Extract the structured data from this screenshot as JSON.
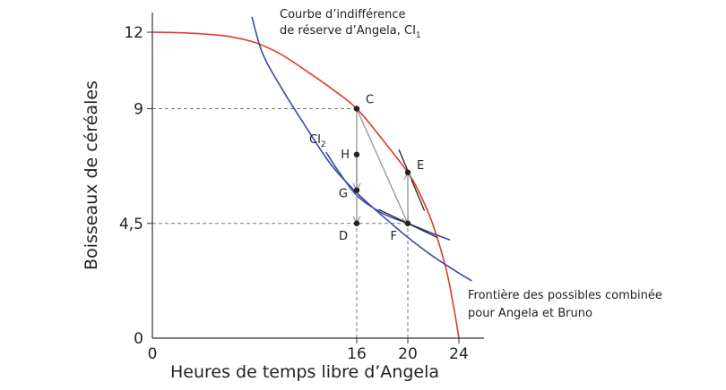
{
  "chart_data": {
    "type": "line",
    "xlabel": "Heures de temps libre d’Angela",
    "ylabel": "Boisseaux de céréales",
    "xlim": [
      0,
      24
    ],
    "ylim": [
      0,
      12
    ],
    "x_ticks": [
      {
        "value": 0,
        "label": "0"
      },
      {
        "value": 16,
        "label": "16"
      },
      {
        "value": 20,
        "label": "20"
      },
      {
        "value": 24,
        "label": "24"
      }
    ],
    "y_ticks": [
      {
        "value": 0,
        "label": "0"
      },
      {
        "value": 4.5,
        "label": "4,5"
      },
      {
        "value": 9,
        "label": "9"
      },
      {
        "value": 12,
        "label": "12"
      }
    ],
    "colors": {
      "frontier": "#e03a2a",
      "indifference": "#3a4aa8",
      "tangent": "#222222",
      "arrow": "#9a9a9a",
      "guide": "#777777",
      "axis": "#333333"
    },
    "series": [
      {
        "name": "Frontière des possibles combinée pour Angela et Bruno",
        "kind": "frontier",
        "points": [
          [
            0,
            12
          ],
          [
            2,
            11.98
          ],
          [
            4,
            11.93
          ],
          [
            6,
            11.83
          ],
          [
            8,
            11.6
          ],
          [
            10,
            11.15
          ],
          [
            12,
            10.5
          ],
          [
            14,
            9.8
          ],
          [
            16,
            9
          ],
          [
            18,
            7.8
          ],
          [
            20,
            6.5
          ],
          [
            21,
            5.6
          ],
          [
            22,
            4.4
          ],
          [
            23,
            2.7
          ],
          [
            23.6,
            1.2
          ],
          [
            24,
            0
          ]
        ]
      },
      {
        "name": "CI1",
        "kind": "indifference",
        "points": [
          [
            7.8,
            12.6
          ],
          [
            8.6,
            11.2
          ],
          [
            10,
            9.9
          ],
          [
            12,
            8.3
          ],
          [
            14,
            6.8
          ],
          [
            16,
            5.7
          ],
          [
            18,
            4.8
          ],
          [
            20,
            3.95
          ],
          [
            22,
            3.2
          ],
          [
            24,
            2.55
          ],
          [
            25,
            2.25
          ]
        ]
      },
      {
        "name": "CI2",
        "kind": "indifference",
        "points": [
          [
            13.6,
            7.3
          ],
          [
            14.5,
            6.6
          ],
          [
            16,
            5.6
          ],
          [
            18,
            4.9
          ],
          [
            20,
            4.5
          ],
          [
            22,
            4.1
          ],
          [
            23.3,
            3.85
          ]
        ]
      }
    ],
    "points": [
      {
        "label": "C",
        "x": 16,
        "y": 9
      },
      {
        "label": "E",
        "x": 20,
        "y": 6.5
      },
      {
        "label": "H",
        "x": 16,
        "y": 7.2
      },
      {
        "label": "G",
        "x": 16,
        "y": 5.8
      },
      {
        "label": "D",
        "x": 16,
        "y": 4.5
      },
      {
        "label": "F",
        "x": 20,
        "y": 4.5
      }
    ],
    "tangents": [
      {
        "from": [
          19.3,
          7.4
        ],
        "to": [
          21.3,
          5.0
        ]
      },
      {
        "from": [
          17.7,
          5.05
        ],
        "to": [
          22.3,
          3.95
        ]
      }
    ],
    "arrows": [
      {
        "from": [
          16,
          9
        ],
        "to": [
          20,
          4.5
        ]
      },
      {
        "from": [
          16,
          9
        ],
        "to": [
          16,
          5.8
        ]
      },
      {
        "from": [
          16,
          7.2
        ],
        "to": [
          16,
          4.5
        ]
      },
      {
        "from": [
          20,
          4.5
        ],
        "to": [
          20,
          6.5
        ]
      }
    ],
    "guides": [
      {
        "from": [
          0,
          9
        ],
        "to": [
          16,
          9
        ]
      },
      {
        "from": [
          0,
          4.5
        ],
        "to": [
          20,
          4.5
        ]
      },
      {
        "from": [
          16,
          0
        ],
        "to": [
          16,
          4.5
        ]
      },
      {
        "from": [
          20,
          0
        ],
        "to": [
          20,
          4.5
        ]
      }
    ],
    "annotations": {
      "ci1_line1": "Courbe d’indifférence",
      "ci1_line2": "de réserve d’Angela, CI",
      "ci1_sub": "1",
      "ci2_main": "CI",
      "ci2_sub": "2",
      "frontier_line1": "Frontière des possibles combinée",
      "frontier_line2": "pour Angela et Bruno"
    }
  }
}
